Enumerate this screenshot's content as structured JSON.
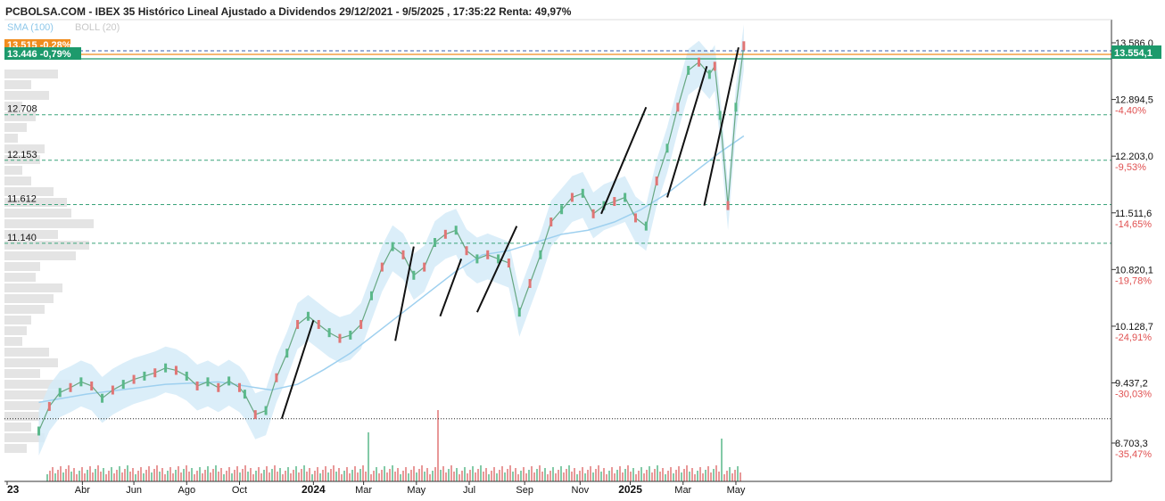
{
  "chart_data": {
    "type": "line",
    "title": "PCBOLSA.COM - IBEX 35 Histórico Lineal Ajustado a Dividendos 29/12/2021 - 9/5/2025 , 17:35:22 Renta: 49,97%",
    "legend": {
      "sma": "SMA (100)",
      "boll": "BOLL (20)"
    },
    "ylim": [
      8500,
      13800
    ],
    "y_ticks": [
      {
        "label": "13.586,0",
        "pct": "",
        "value": 13586.0
      },
      {
        "label": "12.894,5",
        "pct": "-4,40%",
        "value": 12894.5
      },
      {
        "label": "12.203,0",
        "pct": "-9,53%",
        "value": 12203.0
      },
      {
        "label": "11.511,6",
        "pct": "-14,65%",
        "value": 11511.6
      },
      {
        "label": "10.820,1",
        "pct": "-19,78%",
        "value": 10820.1
      },
      {
        "label": "10.128,7",
        "pct": "-24,91%",
        "value": 10128.7
      },
      {
        "label": "9.437,2",
        "pct": "-30,03%",
        "value": 9437.2
      },
      {
        "label": "8.703,3",
        "pct": "-35,47%",
        "value": 8703.3
      }
    ],
    "x_ticks": [
      {
        "label": "23",
        "value": 0,
        "bold": true
      },
      {
        "label": "Abr",
        "value": 2.85,
        "bold": false
      },
      {
        "label": "Jun",
        "value": 4.8,
        "bold": false
      },
      {
        "label": "Ago",
        "value": 6.8,
        "bold": false
      },
      {
        "label": "Oct",
        "value": 8.8,
        "bold": false
      },
      {
        "label": "2024",
        "value": 11.6,
        "bold": true
      },
      {
        "label": "Mar",
        "value": 13.5,
        "bold": false
      },
      {
        "label": "May",
        "value": 15.5,
        "bold": false
      },
      {
        "label": "Jul",
        "value": 17.5,
        "bold": false
      },
      {
        "label": "Sep",
        "value": 19.6,
        "bold": false
      },
      {
        "label": "Nov",
        "value": 21.7,
        "bold": false
      },
      {
        "label": "2025",
        "value": 23.6,
        "bold": true
      },
      {
        "label": "Mar",
        "value": 25.6,
        "bold": false
      },
      {
        "label": "May",
        "value": 27.6,
        "bold": false
      }
    ],
    "xlim": [
      0,
      41.5
    ],
    "levels": [
      {
        "label": "12.708",
        "value": 12708
      },
      {
        "label": "12.153",
        "value": 12153
      },
      {
        "label": "11.612",
        "value": 11612
      },
      {
        "label": "11.140",
        "value": 11140
      }
    ],
    "reference_line": {
      "value": 9000
    },
    "current_price": {
      "label": "13.554,1",
      "value": 13554.1,
      "color": "#1d9a6c"
    },
    "badges": [
      {
        "label": "13.446 -0,79%",
        "value": 13446,
        "color": "#1d9a6c"
      },
      {
        "label": "13.515 -0,28%",
        "value": 13515,
        "color": "#f08c1e"
      }
    ],
    "series": [
      {
        "name": "IBEX 35",
        "color": "#d9534f",
        "x": [
          1.2,
          1.6,
          2.0,
          2.4,
          2.8,
          3.2,
          3.6,
          4.0,
          4.4,
          4.8,
          5.2,
          5.6,
          6.0,
          6.4,
          6.8,
          7.2,
          7.6,
          8.0,
          8.4,
          8.8,
          9.0,
          9.4,
          9.8,
          10.2,
          10.6,
          11.0,
          11.4,
          11.8,
          12.2,
          12.6,
          13.0,
          13.4,
          13.8,
          14.2,
          14.6,
          15.0,
          15.4,
          15.8,
          16.2,
          16.6,
          17.0,
          17.4,
          17.8,
          18.2,
          18.6,
          19.0,
          19.4,
          19.8,
          20.2,
          20.6,
          21.0,
          21.4,
          21.8,
          22.2,
          22.6,
          23.0,
          23.4,
          23.8,
          24.2,
          24.6,
          25.0,
          25.4,
          25.8,
          26.2,
          26.6,
          26.8,
          27.0,
          27.3,
          27.6,
          27.9
        ],
        "values": [
          8850,
          9150,
          9320,
          9380,
          9450,
          9400,
          9250,
          9350,
          9420,
          9480,
          9520,
          9560,
          9620,
          9590,
          9520,
          9400,
          9450,
          9380,
          9460,
          9380,
          9300,
          9050,
          9100,
          9500,
          9800,
          10150,
          10250,
          10150,
          10050,
          9980,
          10020,
          10150,
          10500,
          10850,
          11100,
          11000,
          10750,
          10850,
          11150,
          11250,
          11300,
          11050,
          10950,
          11000,
          10950,
          10900,
          10300,
          10650,
          11000,
          11400,
          11550,
          11700,
          11750,
          11500,
          11600,
          11650,
          11700,
          11450,
          11350,
          11900,
          12300,
          12800,
          13250,
          13350,
          13200,
          13300,
          12700,
          11600,
          12800,
          13550
        ]
      }
    ],
    "sma": {
      "name": "SMA (100)",
      "x": [
        1.2,
        3.0,
        6.0,
        8.0,
        10.0,
        11.0,
        12.0,
        13.0,
        14.0,
        15.0,
        16.0,
        17.0,
        18.0,
        19.0,
        20.0,
        21.0,
        22.0,
        23.0,
        24.0,
        25.0,
        26.0,
        27.0,
        27.9
      ],
      "values": [
        9200,
        9300,
        9420,
        9450,
        9350,
        9420,
        9600,
        9800,
        10050,
        10300,
        10550,
        10800,
        11000,
        11050,
        11150,
        11250,
        11300,
        11400,
        11550,
        11750,
        12000,
        12250,
        12450
      ]
    },
    "trend_lines": [
      {
        "x": [
          10.4,
          11.6
        ],
        "values": [
          9000,
          10200
        ]
      },
      {
        "x": [
          14.7,
          15.4
        ],
        "values": [
          9950,
          11100
        ]
      },
      {
        "x": [
          16.4,
          17.2
        ],
        "values": [
          10250,
          10950
        ]
      },
      {
        "x": [
          17.8,
          19.3
        ],
        "values": [
          10300,
          11350
        ]
      },
      {
        "x": [
          22.5,
          24.2
        ],
        "values": [
          11500,
          12800
        ]
      },
      {
        "x": [
          25.0,
          26.5
        ],
        "values": [
          11700,
          13300
        ]
      },
      {
        "x": [
          26.4,
          27.7
        ],
        "values": [
          11600,
          13530
        ]
      }
    ]
  }
}
